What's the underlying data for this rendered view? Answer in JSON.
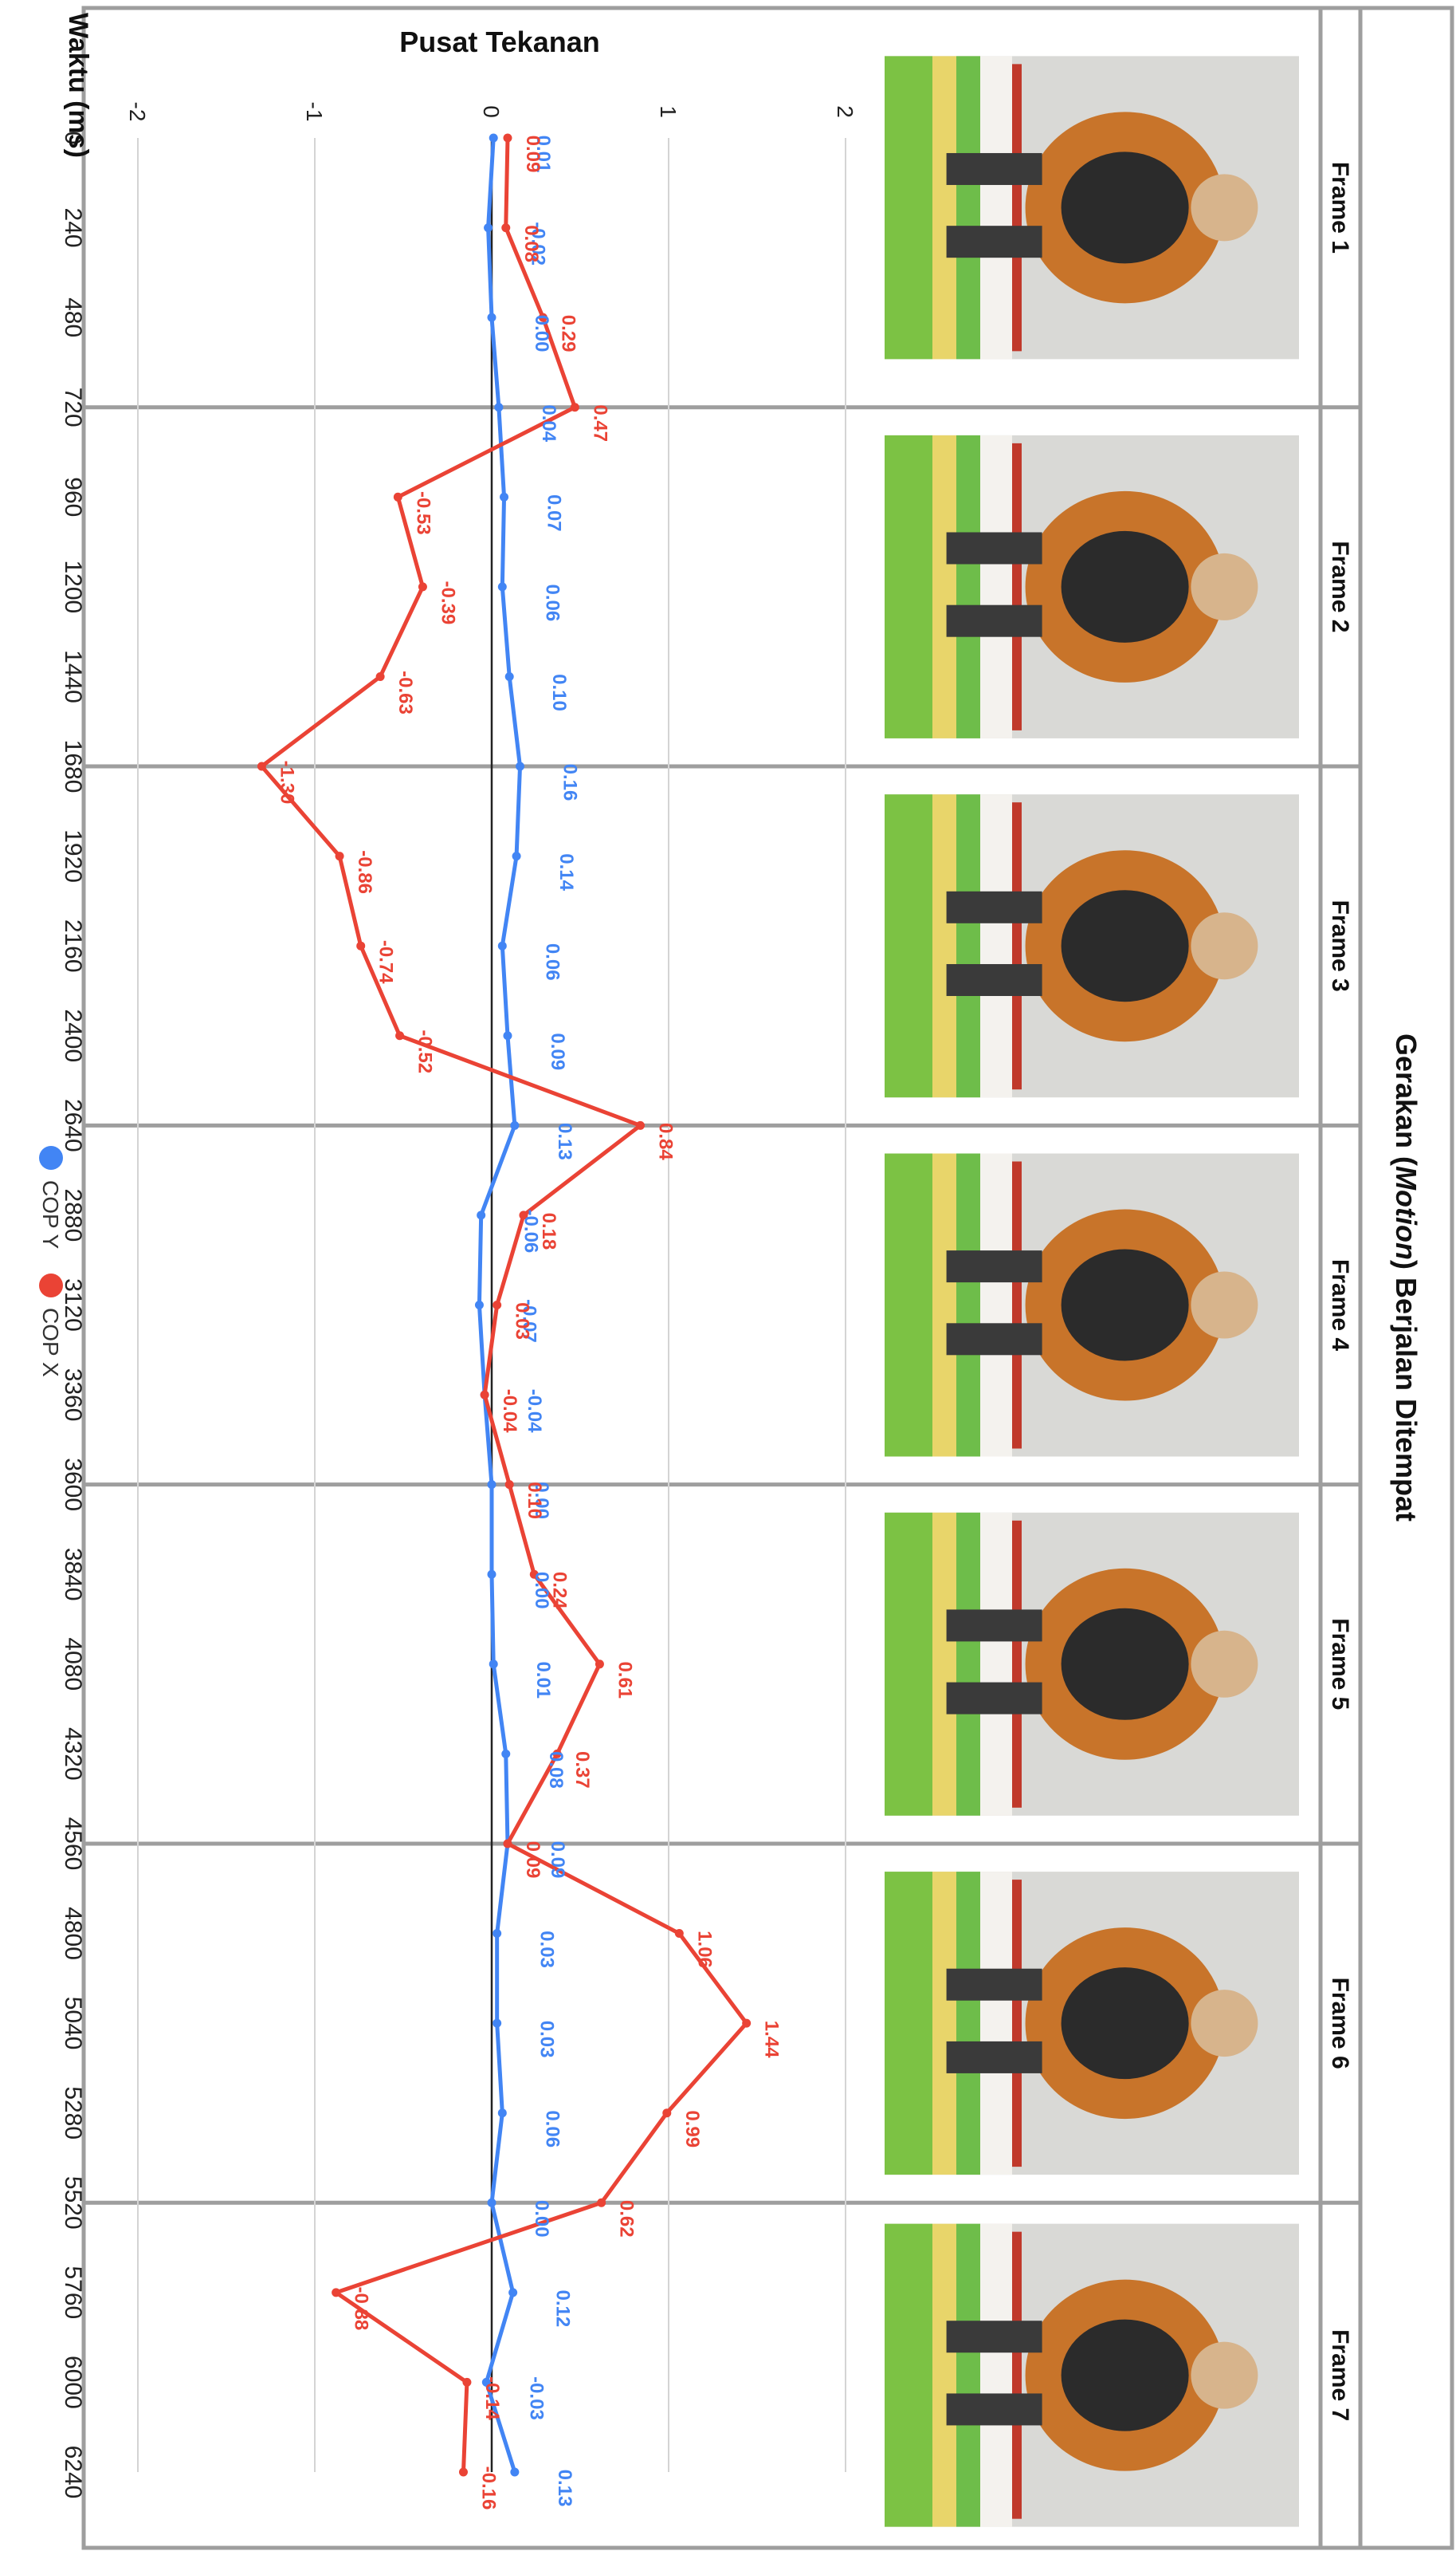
{
  "page_title": "Gerakan (Motion) Berjalan Ditempat",
  "page_title_parts": {
    "before": "Gerakan (",
    "italic": "Motion",
    "after": ") Berjalan Ditempat"
  },
  "frames": [
    "Frame 1",
    "Frame 2",
    "Frame 3",
    "Frame 4",
    "Frame 5",
    "Frame 6",
    "Frame 7"
  ],
  "colors": {
    "cop_x": "#ea4335",
    "cop_y": "#4285f4",
    "border": "#9e9e9e",
    "grid": "#d4d4d4",
    "zero": "#222222"
  },
  "chart_data": {
    "type": "line",
    "title": "Pusat Tekanan",
    "xlabel": "Waktu (ms)",
    "ylabel": "",
    "x": [
      0,
      240,
      480,
      720,
      960,
      1200,
      1440,
      1680,
      1920,
      2160,
      2400,
      2640,
      2880,
      3120,
      3360,
      3600,
      3840,
      4080,
      4320,
      4560,
      4800,
      5040,
      5280,
      5520,
      5760,
      6000,
      6240
    ],
    "ylim": [
      -2,
      2
    ],
    "yticks": [
      -2,
      -1,
      0,
      1,
      2
    ],
    "grid": true,
    "legend_position": "bottom",
    "series": [
      {
        "name": "COP Y",
        "color": "#4285f4",
        "values": [
          0.01,
          -0.02,
          0.0,
          0.04,
          0.07,
          0.06,
          0.1,
          0.16,
          0.14,
          0.06,
          0.09,
          0.13,
          -0.06,
          -0.07,
          -0.04,
          0.0,
          0.0,
          0.01,
          0.08,
          0.09,
          0.03,
          0.03,
          0.06,
          0.0,
          0.12,
          -0.03,
          0.13
        ]
      },
      {
        "name": "COP X",
        "color": "#ea4335",
        "values": [
          0.09,
          0.08,
          0.29,
          0.47,
          -0.53,
          -0.39,
          -0.63,
          -1.3,
          -0.86,
          -0.74,
          -0.52,
          0.84,
          0.18,
          0.03,
          -0.04,
          0.1,
          0.24,
          0.61,
          0.37,
          0.09,
          1.06,
          1.44,
          0.99,
          0.62,
          -0.88,
          -0.14,
          -0.16
        ]
      }
    ]
  }
}
